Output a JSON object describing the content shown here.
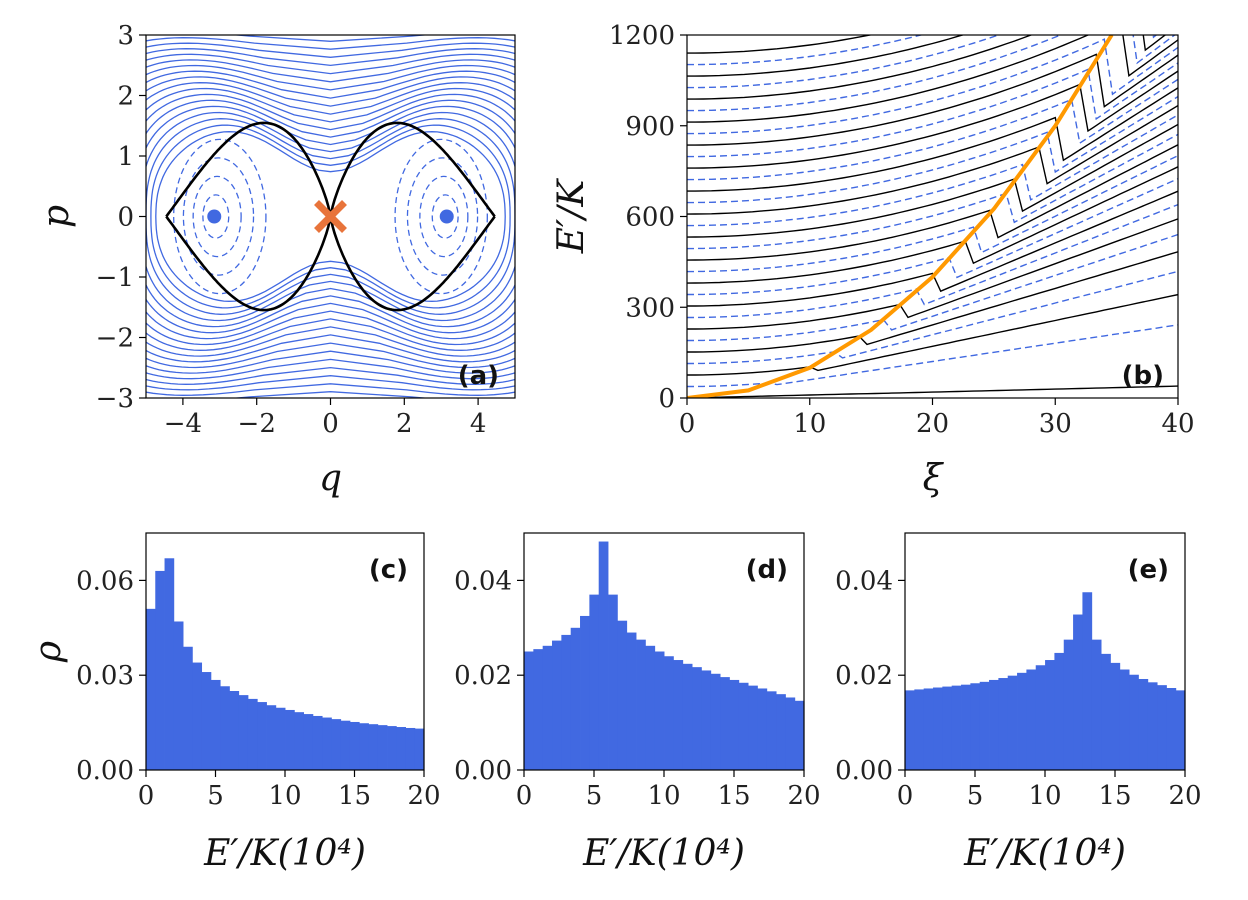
{
  "chart_data": [
    {
      "id": "a",
      "type": "contour",
      "panel_label": "(a)",
      "xlabel": "q",
      "ylabel": "p",
      "xlim": [
        -5,
        5
      ],
      "ylim": [
        -3,
        3
      ],
      "xticks": [
        -4,
        -2,
        0,
        2,
        4
      ],
      "xtick_labels": [
        "−4",
        "−2",
        "0",
        "2",
        "4"
      ],
      "yticks": [
        -3,
        -2,
        -1,
        0,
        1,
        2,
        3
      ],
      "ytick_labels": [
        "−3",
        "−2",
        "−1",
        "0",
        "1",
        "2",
        "3"
      ],
      "separatrix": {
        "x_turning": 4.45,
        "p_max": 1.58,
        "q_at_pmax": 2.75
      },
      "stable_points": [
        [
          -3.15,
          0
        ],
        [
          3.15,
          0
        ]
      ],
      "saddle_point": [
        0,
        0
      ],
      "inner_orbits_half_width": [
        0.35,
        0.65,
        0.95,
        1.25
      ],
      "outer_orbits_count": 24,
      "colors": {
        "contour": "#4169e1",
        "separatrix": "#000000",
        "saddle": "#e8743b",
        "stable": "#4169e1"
      }
    },
    {
      "id": "b",
      "type": "line",
      "panel_label": "(b)",
      "xlabel": "ξ",
      "ylabel": "E′/K",
      "xlim": [
        0,
        40
      ],
      "ylim": [
        0,
        1200
      ],
      "xticks": [
        0,
        10,
        20,
        30,
        40
      ],
      "xtick_labels": [
        "0",
        "10",
        "20",
        "30",
        "40"
      ],
      "yticks": [
        0,
        300,
        600,
        900,
        1200
      ],
      "ytick_labels": [
        "0",
        "300",
        "600",
        "900",
        "1200"
      ],
      "level_spacing": 38,
      "level_count": 31,
      "separatrix_curve": {
        "x": [
          0,
          5,
          10,
          15,
          20,
          25,
          30,
          34.6
        ],
        "y": [
          0,
          25,
          100,
          225,
          400,
          625,
          900,
          1200
        ]
      },
      "colors": {
        "solid_levels": "#000000",
        "dashed_levels": "#4169e1",
        "separatrix": "#ff9900"
      }
    },
    {
      "id": "c",
      "type": "bar",
      "panel_label": "(c)",
      "xlabel": "E′/K(10⁴)",
      "ylabel": "ρ",
      "xlim": [
        0,
        20
      ],
      "ylim": [
        0,
        0.075
      ],
      "xticks": [
        0,
        5,
        10,
        15,
        20
      ],
      "xtick_labels": [
        "0",
        "5",
        "10",
        "15",
        "20"
      ],
      "yticks": [
        0,
        0.03,
        0.06
      ],
      "ytick_labels": [
        "0.00",
        "0.03",
        "0.06"
      ],
      "bin_start": 0,
      "bin_width": 0.667,
      "values": [
        0.051,
        0.063,
        0.067,
        0.047,
        0.039,
        0.034,
        0.031,
        0.0285,
        0.0265,
        0.025,
        0.0237,
        0.0225,
        0.0215,
        0.0205,
        0.0197,
        0.019,
        0.0183,
        0.0177,
        0.0171,
        0.0166,
        0.0161,
        0.0156,
        0.0152,
        0.0148,
        0.0145,
        0.0142,
        0.0139,
        0.0136,
        0.0133,
        0.0131
      ],
      "color": "#4169e1"
    },
    {
      "id": "d",
      "type": "bar",
      "panel_label": "(d)",
      "xlabel": "E′/K(10⁴)",
      "ylabel": "",
      "xlim": [
        0,
        20
      ],
      "ylim": [
        0,
        0.05
      ],
      "xticks": [
        0,
        5,
        10,
        15,
        20
      ],
      "xtick_labels": [
        "0",
        "5",
        "10",
        "15",
        "20"
      ],
      "yticks": [
        0,
        0.02,
        0.04
      ],
      "ytick_labels": [
        "0.00",
        "0.02",
        "0.04"
      ],
      "bin_start": 0,
      "bin_width": 0.667,
      "values": [
        0.025,
        0.0255,
        0.0262,
        0.0273,
        0.0285,
        0.03,
        0.0325,
        0.037,
        0.0482,
        0.037,
        0.0315,
        0.029,
        0.0275,
        0.0262,
        0.025,
        0.024,
        0.0232,
        0.0224,
        0.0217,
        0.021,
        0.0203,
        0.0196,
        0.019,
        0.0184,
        0.0178,
        0.0172,
        0.0166,
        0.016,
        0.0153,
        0.0146
      ],
      "color": "#4169e1"
    },
    {
      "id": "e",
      "type": "bar",
      "panel_label": "(e)",
      "xlabel": "E′/K(10⁴)",
      "ylabel": "",
      "xlim": [
        0,
        20
      ],
      "ylim": [
        0,
        0.05
      ],
      "xticks": [
        0,
        5,
        10,
        15,
        20
      ],
      "xtick_labels": [
        "0",
        "5",
        "10",
        "15",
        "20"
      ],
      "yticks": [
        0,
        0.02,
        0.04
      ],
      "ytick_labels": [
        "0.00",
        "0.02",
        "0.04"
      ],
      "bin_start": 0,
      "bin_width": 0.667,
      "values": [
        0.0168,
        0.017,
        0.0172,
        0.0174,
        0.0176,
        0.0178,
        0.018,
        0.0183,
        0.0186,
        0.019,
        0.0194,
        0.0199,
        0.0205,
        0.0212,
        0.0221,
        0.0232,
        0.0247,
        0.0275,
        0.0328,
        0.0375,
        0.0275,
        0.0245,
        0.0226,
        0.0212,
        0.0201,
        0.0192,
        0.0185,
        0.0179,
        0.0173,
        0.0168
      ],
      "color": "#4169e1"
    }
  ]
}
